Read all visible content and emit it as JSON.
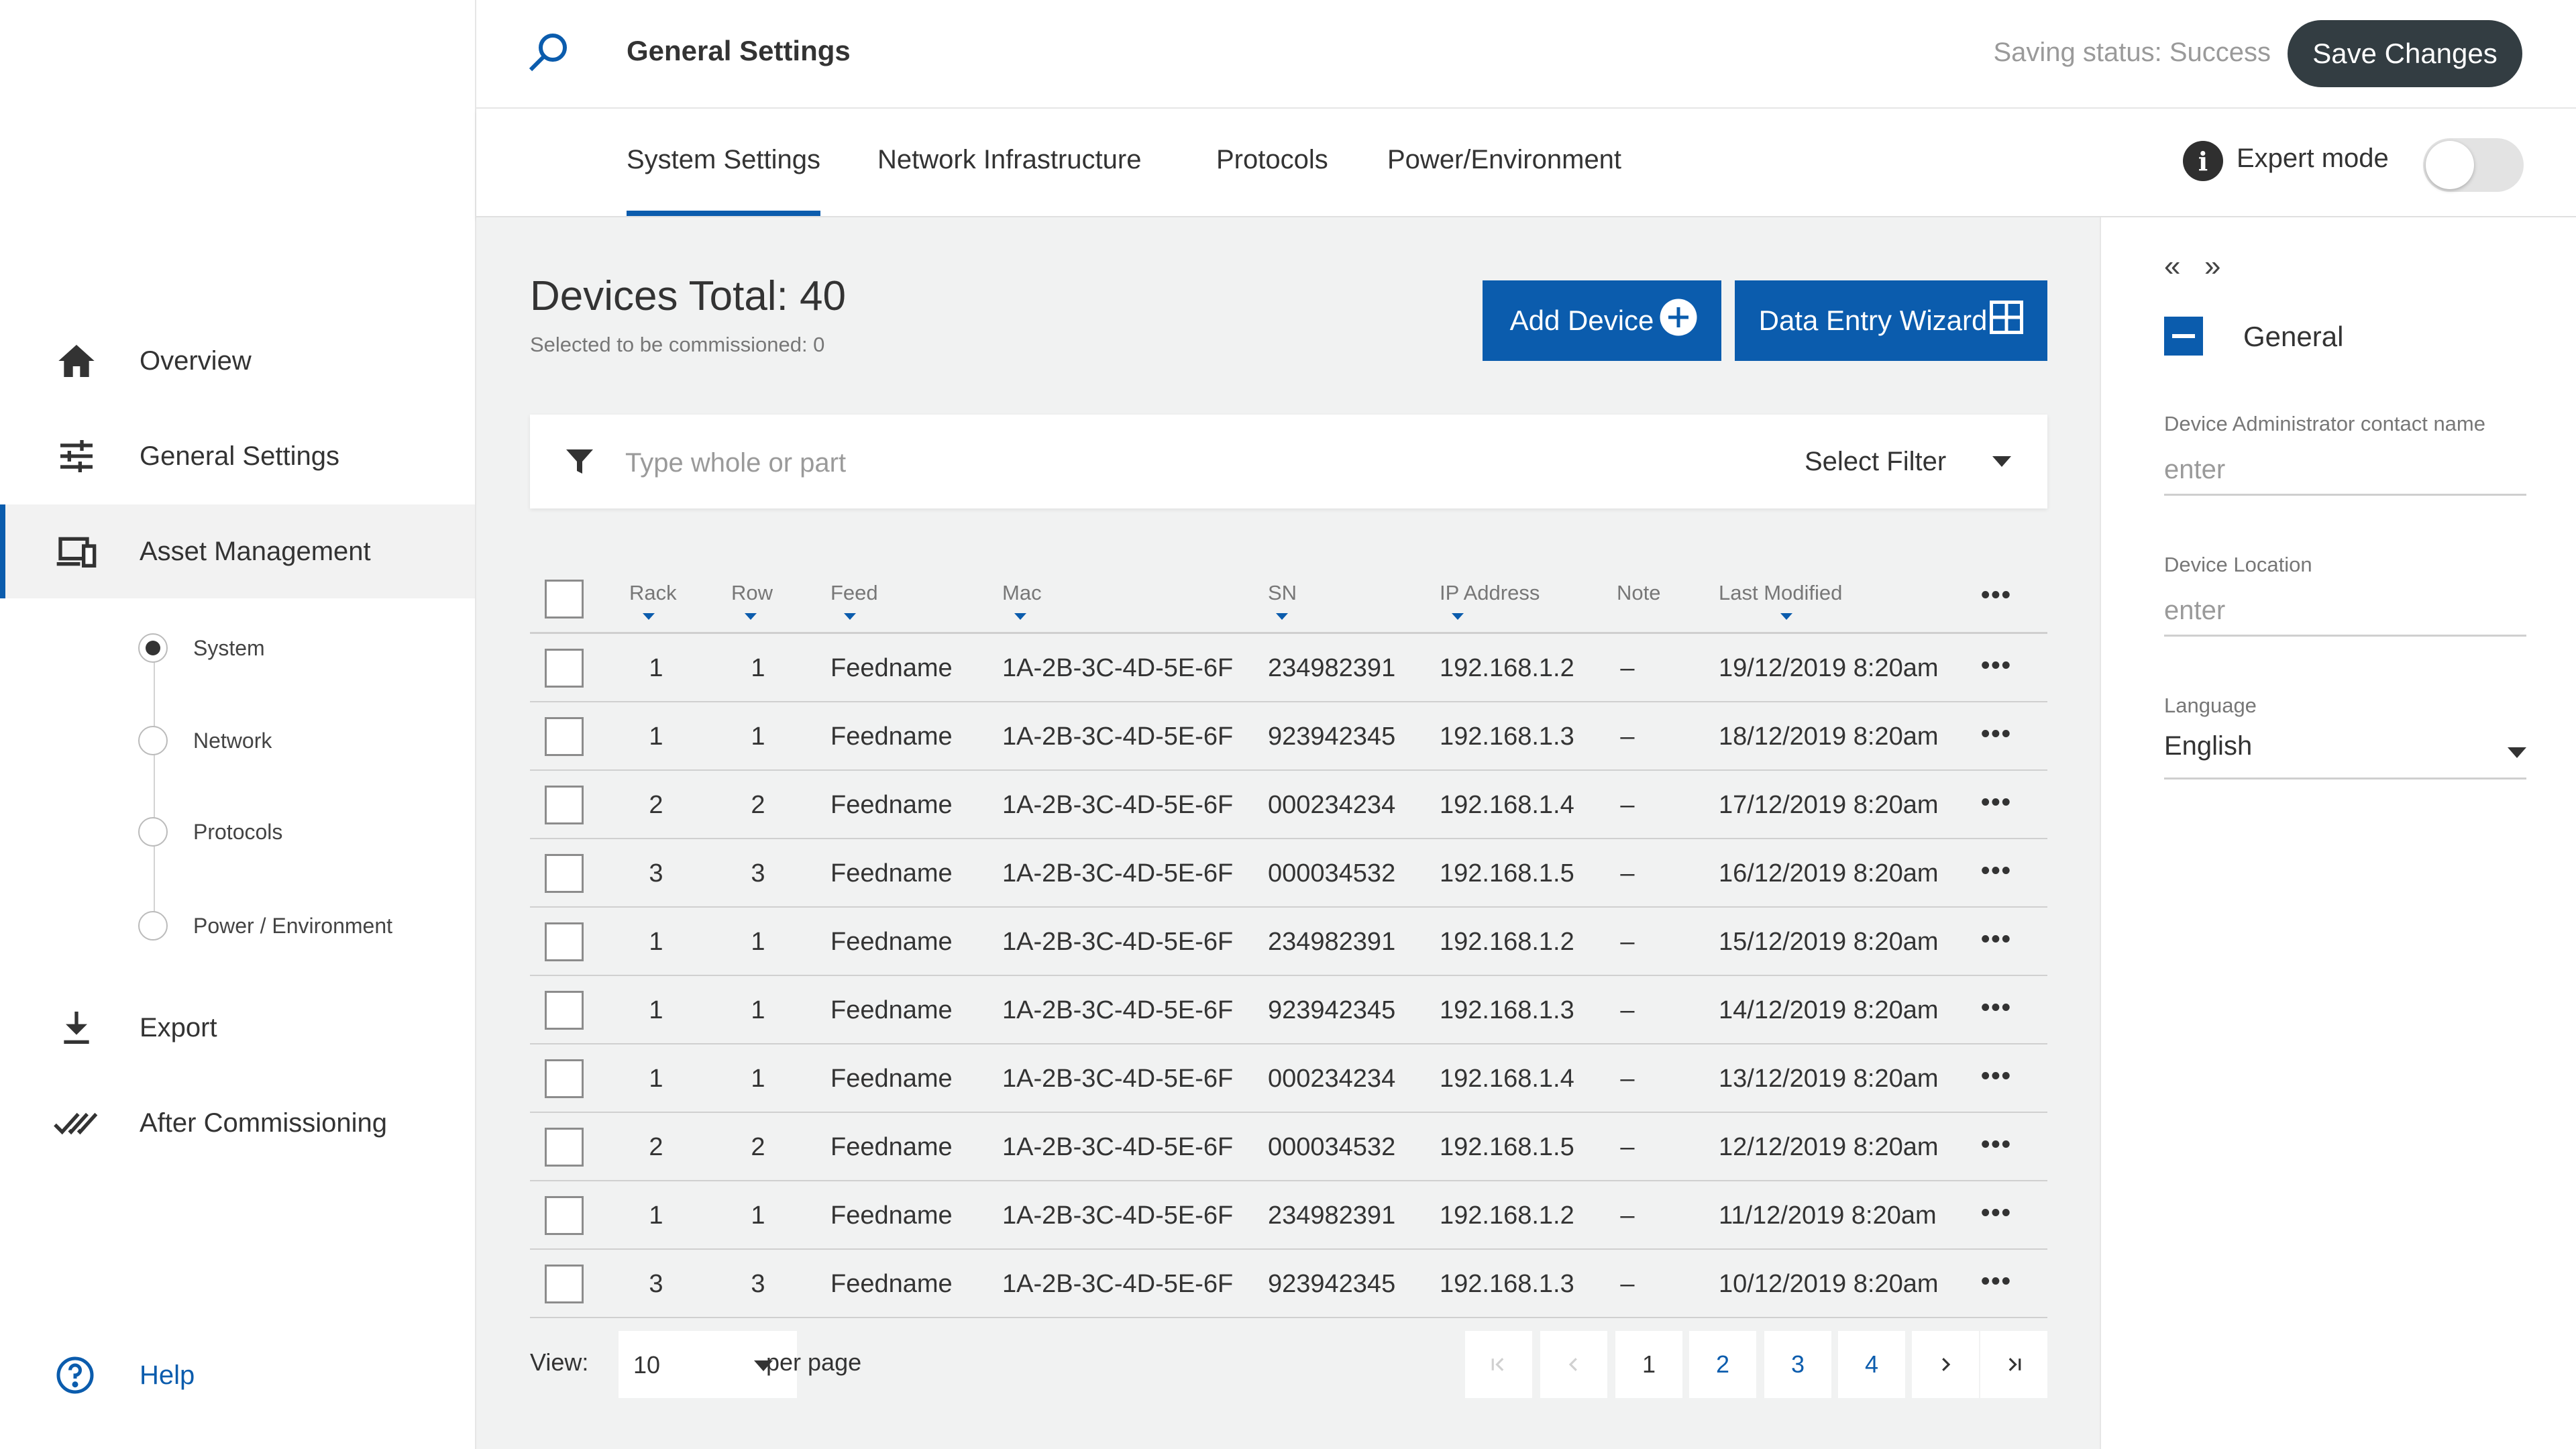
{
  "sidebar": {
    "items": [
      {
        "label": "Overview",
        "icon": "home-icon"
      },
      {
        "label": "General Settings",
        "icon": "sliders-icon"
      },
      {
        "label": "Asset Management",
        "icon": "devices-icon",
        "active": true
      },
      {
        "label": "Export",
        "icon": "download-icon"
      },
      {
        "label": "After Commissioning",
        "icon": "double-check-icon"
      }
    ],
    "sub_items": [
      {
        "label": "System",
        "current": true
      },
      {
        "label": "Network"
      },
      {
        "label": "Protocols"
      },
      {
        "label": "Power / Environment"
      }
    ],
    "help": {
      "label": "Help",
      "icon": "help-circle-icon"
    }
  },
  "header": {
    "title": "General Settings",
    "saving_status": "Saving status: Success",
    "save_label": "Save Changes"
  },
  "tabs": [
    {
      "label": "System Settings",
      "active": true
    },
    {
      "label": "Network Infrastructure"
    },
    {
      "label": "Protocols"
    },
    {
      "label": "Power/Environment"
    }
  ],
  "expert_mode": {
    "label": "Expert mode",
    "enabled": false
  },
  "main": {
    "devices_total": "Devices Total: 40",
    "selected": "Selected to be commissioned: 0",
    "add_device_label": "Add Device",
    "wizard_label": "Data Entry Wizard",
    "filter": {
      "placeholder": "Type whole or part",
      "select_label": "Select Filter"
    }
  },
  "table": {
    "columns": [
      "Rack",
      "Row",
      "Feed",
      "Mac",
      "SN",
      "IP Address",
      "Note",
      "Last Modified"
    ],
    "rows": [
      [
        "1",
        "1",
        "Feedname",
        "1A-2B-3C-4D-5E-6F",
        "234982391",
        "192.168.1.2",
        "–",
        "19/12/2019 8:20am"
      ],
      [
        "1",
        "1",
        "Feedname",
        "1A-2B-3C-4D-5E-6F",
        "923942345",
        "192.168.1.3",
        "–",
        "18/12/2019 8:20am"
      ],
      [
        "2",
        "2",
        "Feedname",
        "1A-2B-3C-4D-5E-6F",
        "000234234",
        "192.168.1.4",
        "–",
        "17/12/2019 8:20am"
      ],
      [
        "3",
        "3",
        "Feedname",
        "1A-2B-3C-4D-5E-6F",
        "000034532",
        "192.168.1.5",
        "–",
        "16/12/2019 8:20am"
      ],
      [
        "1",
        "1",
        "Feedname",
        "1A-2B-3C-4D-5E-6F",
        "234982391",
        "192.168.1.2",
        "–",
        "15/12/2019 8:20am"
      ],
      [
        "1",
        "1",
        "Feedname",
        "1A-2B-3C-4D-5E-6F",
        "923942345",
        "192.168.1.3",
        "–",
        "14/12/2019 8:20am"
      ],
      [
        "1",
        "1",
        "Feedname",
        "1A-2B-3C-4D-5E-6F",
        "000234234",
        "192.168.1.4",
        "–",
        "13/12/2019 8:20am"
      ],
      [
        "2",
        "2",
        "Feedname",
        "1A-2B-3C-4D-5E-6F",
        "000034532",
        "192.168.1.5",
        "–",
        "12/12/2019 8:20am"
      ],
      [
        "1",
        "1",
        "Feedname",
        "1A-2B-3C-4D-5E-6F",
        "234982391",
        "192.168.1.2",
        "–",
        "11/12/2019 8:20am"
      ],
      [
        "3",
        "3",
        "Feedname",
        "1A-2B-3C-4D-5E-6F",
        "923942345",
        "192.168.1.3",
        "–",
        "10/12/2019 8:20am"
      ]
    ]
  },
  "pagination": {
    "view_label": "View:",
    "view_value": "10",
    "per_page": "per page",
    "pages": [
      "1",
      "2",
      "3",
      "4"
    ],
    "current_page": "1"
  },
  "right_panel": {
    "section_title": "General",
    "fields": [
      {
        "label": "Device Administrator contact name",
        "placeholder": "enter"
      },
      {
        "label": "Device Location",
        "placeholder": "enter"
      }
    ],
    "language": {
      "label": "Language",
      "value": "English"
    }
  },
  "colors": {
    "accent": "#0b5cad",
    "dark_button": "#333d42",
    "main_bg": "#f1f2f2"
  }
}
